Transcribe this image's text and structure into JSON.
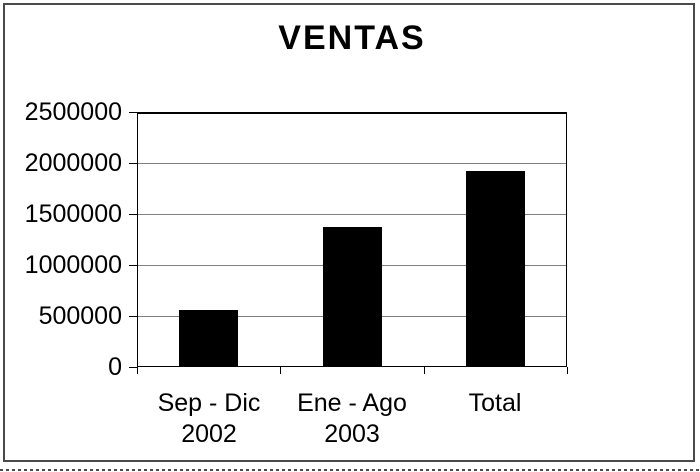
{
  "chart_data": {
    "type": "bar",
    "title": "VENTAS",
    "categories": [
      "Sep - Dic 2002",
      "Ene - Ago 2003",
      "Total"
    ],
    "category_label_lines": [
      [
        "Sep - Dic",
        "2002"
      ],
      [
        "Ene - Ago",
        "2003"
      ],
      [
        "Total"
      ]
    ],
    "values": [
      560000,
      1370000,
      1920000
    ],
    "xlabel": "",
    "ylabel": "",
    "ylim": [
      0,
      2500000
    ],
    "yticks": [
      0,
      500000,
      1000000,
      1500000,
      2000000,
      2500000
    ],
    "ytick_labels": [
      "0",
      "500000",
      "1000000",
      "1500000",
      "2000000",
      "2500000"
    ],
    "grid": true,
    "legend": false,
    "bar_color": "#000000",
    "gridline_color": "#808080",
    "axis_color": "#000000",
    "text_color": "#000000",
    "frame_color": "#4a4a4a",
    "background_color": "#ffffff"
  }
}
